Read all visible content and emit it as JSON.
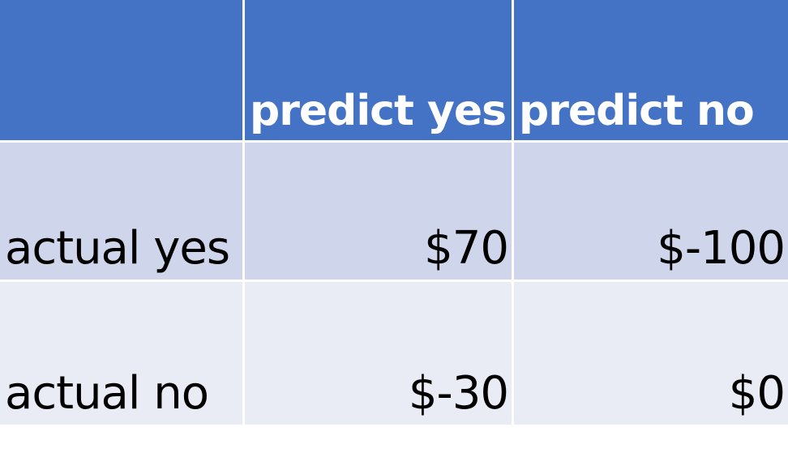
{
  "table": {
    "columns": [
      "",
      "predict yes",
      "predict no"
    ],
    "rows": [
      {
        "label": "actual yes",
        "values": [
          "$70",
          "$-100"
        ]
      },
      {
        "label": "actual no",
        "values": [
          "$-30",
          "$0"
        ]
      }
    ],
    "colors": {
      "header_bg": "#4472c4",
      "header_text": "#ffffff",
      "row_band_1": "#cfd5ea",
      "row_band_2": "#e9ebf5",
      "body_text": "#000000"
    }
  }
}
